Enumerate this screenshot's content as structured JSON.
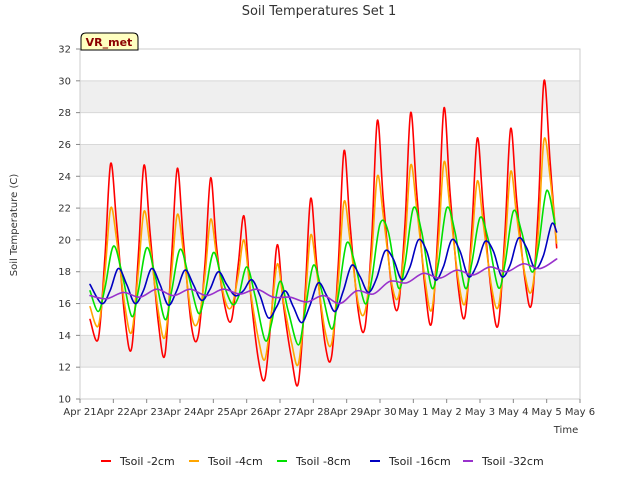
{
  "chart_data": {
    "type": "line",
    "title": "Soil Temperatures Set 1",
    "xlabel": "Time",
    "ylabel": "Soil Temperature (C)",
    "badge": "VR_met",
    "ylim": [
      10,
      32
    ],
    "yticks": [
      10,
      12,
      14,
      16,
      18,
      20,
      22,
      24,
      26,
      28,
      30,
      32
    ],
    "xlim": [
      0,
      15
    ],
    "xticks": [
      0,
      1,
      2,
      3,
      4,
      5,
      6,
      7,
      8,
      9,
      10,
      11,
      12,
      13,
      14,
      15
    ],
    "xtick_labels": [
      "Apr 21",
      "Apr 22",
      "Apr 23",
      "Apr 24",
      "Apr 25",
      "Apr 26",
      "Apr 27",
      "Apr 28",
      "Apr 29",
      "Apr 30",
      "May 1",
      "May 2",
      "May 3",
      "May 4",
      "May 5",
      "May 6"
    ],
    "grid": true,
    "legend_position": "bottom",
    "series": [
      {
        "name": "Tsoil -2cm",
        "color": "#ff0000",
        "x": [
          0.3,
          0.55,
          0.75,
          0.92,
          1.1,
          1.35,
          1.55,
          1.75,
          1.92,
          2.1,
          2.35,
          2.55,
          2.75,
          2.92,
          3.1,
          3.35,
          3.55,
          3.75,
          3.92,
          4.1,
          4.35,
          4.55,
          4.75,
          4.92,
          5.1,
          5.35,
          5.55,
          5.75,
          5.92,
          6.1,
          6.35,
          6.55,
          6.75,
          6.92,
          7.1,
          7.35,
          7.55,
          7.75,
          7.92,
          8.1,
          8.35,
          8.55,
          8.75,
          8.92,
          9.1,
          9.35,
          9.55,
          9.75,
          9.92,
          10.1,
          10.35,
          10.55,
          10.75,
          10.92,
          11.1,
          11.35,
          11.55,
          11.75,
          11.92,
          12.1,
          12.35,
          12.55,
          12.75,
          12.92,
          13.1,
          13.35,
          13.55,
          13.75,
          13.92,
          14.1,
          14.3
        ],
        "y": [
          15.0,
          13.8,
          19.0,
          24.8,
          21.0,
          15.0,
          13.2,
          19.0,
          24.7,
          20.5,
          14.8,
          12.8,
          19.0,
          24.5,
          20.0,
          14.5,
          14.0,
          18.5,
          23.9,
          19.5,
          15.8,
          15.0,
          18.5,
          21.5,
          17.0,
          12.5,
          11.3,
          15.5,
          19.7,
          16.0,
          12.5,
          11.0,
          16.5,
          22.6,
          18.5,
          13.5,
          12.7,
          18.5,
          25.6,
          21.0,
          15.5,
          14.5,
          20.0,
          27.5,
          22.5,
          17.0,
          15.8,
          21.0,
          28.0,
          23.0,
          17.0,
          14.8,
          21.0,
          28.3,
          23.0,
          17.0,
          15.2,
          20.5,
          26.4,
          22.0,
          16.5,
          14.7,
          20.5,
          27.0,
          22.5,
          17.5,
          16.0,
          22.0,
          30.0,
          25.0,
          19.5
        ]
      },
      {
        "name": "Tsoil -4cm",
        "color": "#ffa500",
        "x": [
          0.3,
          0.55,
          0.75,
          0.92,
          1.1,
          1.35,
          1.55,
          1.75,
          1.92,
          2.1,
          2.35,
          2.55,
          2.75,
          2.92,
          3.1,
          3.35,
          3.55,
          3.75,
          3.92,
          4.1,
          4.35,
          4.55,
          4.75,
          4.92,
          5.1,
          5.35,
          5.55,
          5.75,
          5.92,
          6.1,
          6.35,
          6.55,
          6.75,
          6.92,
          7.1,
          7.35,
          7.55,
          7.75,
          7.92,
          8.1,
          8.35,
          8.55,
          8.75,
          8.92,
          9.1,
          9.35,
          9.55,
          9.75,
          9.92,
          10.1,
          10.35,
          10.55,
          10.75,
          10.92,
          11.1,
          11.35,
          11.55,
          11.75,
          11.92,
          12.1,
          12.35,
          12.55,
          12.75,
          12.92,
          13.1,
          13.35,
          13.55,
          13.75,
          13.92,
          14.1,
          14.3
        ],
        "y": [
          15.8,
          14.6,
          18.0,
          22.0,
          20.0,
          15.8,
          14.2,
          18.0,
          21.8,
          19.6,
          15.5,
          13.9,
          18.0,
          21.6,
          19.3,
          15.2,
          14.9,
          17.8,
          21.3,
          19.0,
          16.2,
          15.8,
          17.8,
          20.0,
          17.0,
          13.8,
          12.5,
          15.5,
          18.5,
          16.2,
          13.5,
          12.2,
          16.0,
          20.3,
          18.0,
          14.3,
          13.5,
          17.5,
          22.4,
          20.0,
          16.0,
          15.5,
          19.0,
          24.0,
          21.5,
          17.3,
          16.4,
          19.8,
          24.7,
          22.0,
          17.5,
          15.6,
          19.8,
          24.9,
          22.0,
          17.5,
          16.0,
          19.6,
          23.7,
          21.0,
          17.0,
          15.8,
          19.5,
          24.3,
          21.5,
          17.8,
          16.8,
          20.5,
          26.3,
          24.0,
          19.8
        ]
      },
      {
        "name": "Tsoil -8cm",
        "color": "#00e000",
        "x": [
          0.3,
          0.55,
          0.75,
          1.0,
          1.25,
          1.55,
          1.75,
          2.0,
          2.25,
          2.55,
          2.75,
          3.0,
          3.25,
          3.55,
          3.75,
          4.0,
          4.25,
          4.55,
          4.75,
          5.0,
          5.25,
          5.55,
          5.75,
          6.0,
          6.25,
          6.55,
          6.75,
          7.0,
          7.25,
          7.55,
          7.75,
          8.0,
          8.25,
          8.55,
          8.75,
          9.0,
          9.25,
          9.55,
          9.75,
          10.0,
          10.25,
          10.55,
          10.75,
          11.0,
          11.25,
          11.55,
          11.75,
          12.0,
          12.25,
          12.55,
          12.75,
          13.0,
          13.25,
          13.55,
          13.75,
          14.0,
          14.25
        ],
        "y": [
          16.8,
          15.5,
          17.0,
          19.6,
          18.0,
          15.2,
          16.8,
          19.5,
          17.8,
          15.0,
          16.8,
          19.4,
          17.8,
          15.4,
          16.6,
          19.2,
          17.6,
          16.0,
          16.4,
          18.3,
          16.5,
          13.7,
          14.8,
          17.4,
          15.5,
          13.4,
          15.5,
          18.4,
          16.8,
          14.4,
          16.5,
          19.8,
          18.5,
          16.0,
          17.5,
          21.0,
          20.5,
          17.0,
          18.5,
          22.0,
          20.5,
          17.0,
          18.5,
          22.0,
          20.5,
          17.0,
          18.5,
          21.4,
          20.0,
          17.0,
          18.5,
          21.8,
          20.5,
          18.0,
          19.5,
          23.1,
          21.0
        ]
      },
      {
        "name": "Tsoil -16cm",
        "color": "#0000c0",
        "x": [
          0.3,
          0.65,
          0.9,
          1.15,
          1.4,
          1.65,
          1.9,
          2.15,
          2.4,
          2.65,
          2.9,
          3.15,
          3.4,
          3.65,
          3.9,
          4.15,
          4.4,
          4.65,
          4.9,
          5.15,
          5.4,
          5.65,
          5.9,
          6.15,
          6.4,
          6.65,
          6.9,
          7.15,
          7.4,
          7.65,
          7.9,
          8.15,
          8.4,
          8.65,
          8.9,
          9.15,
          9.4,
          9.65,
          9.9,
          10.15,
          10.4,
          10.65,
          10.9,
          11.15,
          11.4,
          11.65,
          11.9,
          12.15,
          12.4,
          12.65,
          12.9,
          13.15,
          13.4,
          13.65,
          13.9,
          14.15,
          14.3
        ],
        "y": [
          17.2,
          16.0,
          16.8,
          18.2,
          17.2,
          16.0,
          16.8,
          18.2,
          17.2,
          15.9,
          16.8,
          18.1,
          17.2,
          16.2,
          16.9,
          18.0,
          17.2,
          16.5,
          16.8,
          17.5,
          16.5,
          15.1,
          15.8,
          16.8,
          15.8,
          14.8,
          15.9,
          17.3,
          16.5,
          15.5,
          16.8,
          18.4,
          17.7,
          16.7,
          17.6,
          19.3,
          18.8,
          17.5,
          18.3,
          20.0,
          19.3,
          17.5,
          18.3,
          20.0,
          19.3,
          17.7,
          18.4,
          19.9,
          19.3,
          17.7,
          18.4,
          20.1,
          19.5,
          18.2,
          19.0,
          21.0,
          20.5
        ]
      },
      {
        "name": "Tsoil -32cm",
        "color": "#9932cc",
        "x": [
          0.3,
          0.8,
          1.3,
          1.8,
          2.3,
          2.8,
          3.3,
          3.8,
          4.3,
          4.8,
          5.3,
          5.8,
          6.3,
          6.8,
          7.3,
          7.8,
          8.3,
          8.8,
          9.3,
          9.8,
          10.3,
          10.8,
          11.3,
          11.8,
          12.3,
          12.8,
          13.3,
          13.8,
          14.3
        ],
        "y": [
          16.5,
          16.3,
          16.7,
          16.4,
          16.9,
          16.5,
          16.9,
          16.5,
          16.9,
          16.6,
          16.9,
          16.4,
          16.4,
          16.1,
          16.5,
          16.0,
          16.8,
          16.6,
          17.4,
          17.3,
          17.9,
          17.6,
          18.1,
          17.8,
          18.3,
          18.0,
          18.5,
          18.2,
          18.8
        ]
      }
    ]
  }
}
